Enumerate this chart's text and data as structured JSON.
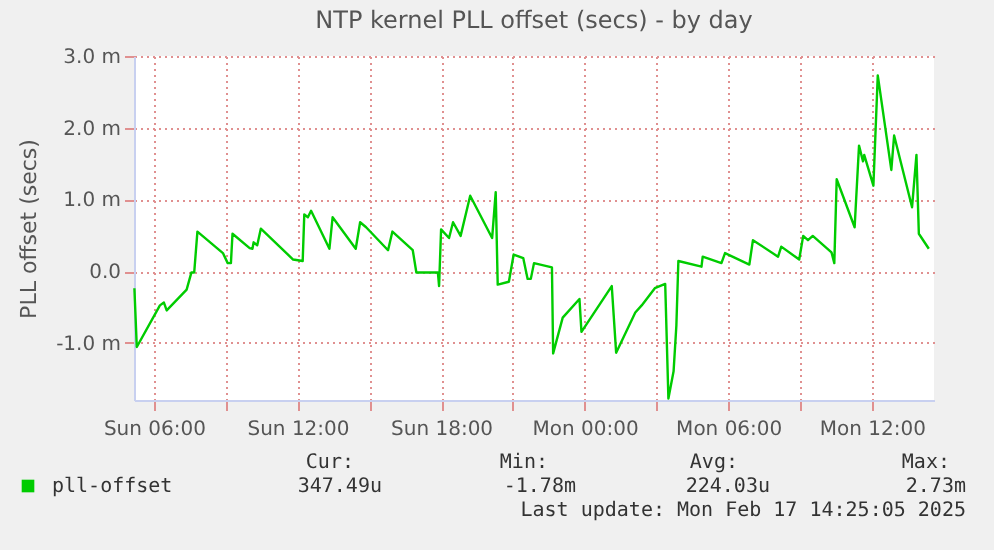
{
  "chart_data": {
    "type": "line",
    "title": "NTP kernel PLL offset (secs) - by day",
    "ylabel": "PLL offset (secs)",
    "x": [
      "2025-02-16T05:11",
      "2025-02-16T05:17",
      "2025-02-16T06:15",
      "2025-02-16T06:25",
      "2025-02-16T06:32",
      "2025-02-16T07:22",
      "2025-02-16T07:34",
      "2025-02-16T07:41",
      "2025-02-16T07:49",
      "2025-02-16T08:53",
      "2025-02-16T09:05",
      "2025-02-16T09:13",
      "2025-02-16T09:17",
      "2025-02-16T10:00",
      "2025-02-16T10:07",
      "2025-02-16T10:10",
      "2025-02-16T10:19",
      "2025-02-16T10:28",
      "2025-02-16T11:49",
      "2025-02-16T12:13",
      "2025-02-16T12:17",
      "2025-02-16T12:26",
      "2025-02-16T12:34",
      "2025-02-16T13:20",
      "2025-02-16T13:28",
      "2025-02-16T14:26",
      "2025-02-16T14:37",
      "2025-02-16T14:52",
      "2025-02-16T15:47",
      "2025-02-16T15:58",
      "2025-02-16T16:49",
      "2025-02-16T16:58",
      "2025-02-16T17:52",
      "2025-02-16T17:55",
      "2025-02-16T18:00",
      "2025-02-16T18:20",
      "2025-02-16T18:30",
      "2025-02-16T18:49",
      "2025-02-16T19:13",
      "2025-02-16T20:08",
      "2025-02-16T20:17",
      "2025-02-16T20:22",
      "2025-02-16T20:50",
      "2025-02-16T21:02",
      "2025-02-16T21:26",
      "2025-02-16T21:37",
      "2025-02-16T21:45",
      "2025-02-16T21:53",
      "2025-02-16T22:38",
      "2025-02-16T22:41",
      "2025-02-16T23:05",
      "2025-02-16T23:47",
      "2025-02-16T23:52",
      "2025-02-17T01:08",
      "2025-02-17T01:19",
      "2025-02-17T02:07",
      "2025-02-17T02:23",
      "2025-02-17T02:56",
      "2025-02-17T03:22",
      "2025-02-17T03:30",
      "2025-02-17T03:43",
      "2025-02-17T03:50",
      "2025-02-17T03:55",
      "2025-02-17T04:53",
      "2025-02-17T04:56",
      "2025-02-17T05:43",
      "2025-02-17T05:52",
      "2025-02-17T06:53",
      "2025-02-17T07:02",
      "2025-02-17T08:05",
      "2025-02-17T08:13",
      "2025-02-17T08:58",
      "2025-02-17T09:08",
      "2025-02-17T09:20",
      "2025-02-17T09:32",
      "2025-02-17T10:19",
      "2025-02-17T10:26",
      "2025-02-17T10:32",
      "2025-02-17T11:17",
      "2025-02-17T11:28",
      "2025-02-17T11:38",
      "2025-02-17T11:41",
      "2025-02-17T12:04",
      "2025-02-17T12:15",
      "2025-02-17T12:49",
      "2025-02-17T12:56",
      "2025-02-17T13:41",
      "2025-02-17T13:52",
      "2025-02-17T13:58",
      "2025-02-17T14:23"
    ],
    "series": [
      {
        "name": "pll-offset",
        "color": "#00cc00",
        "values": [
          -0.24,
          -1.06,
          -0.48,
          -0.44,
          -0.55,
          -0.26,
          -0.02,
          -0.02,
          0.55,
          0.25,
          0.11,
          0.11,
          0.52,
          0.32,
          0.31,
          0.4,
          0.36,
          0.59,
          0.16,
          0.14,
          0.79,
          0.75,
          0.84,
          0.31,
          0.75,
          0.31,
          0.68,
          0.61,
          0.29,
          0.55,
          0.29,
          -0.02,
          -0.02,
          -0.21,
          0.58,
          0.46,
          0.68,
          0.49,
          1.05,
          0.46,
          1.1,
          -0.19,
          -0.15,
          0.23,
          0.18,
          -0.11,
          -0.11,
          0.11,
          0.05,
          -1.15,
          -0.65,
          -0.39,
          -0.85,
          -0.21,
          -1.14,
          -0.58,
          -0.48,
          -0.24,
          -0.18,
          -1.78,
          -1.4,
          -0.76,
          0.14,
          0.06,
          0.2,
          0.11,
          0.25,
          0.09,
          0.43,
          0.2,
          0.34,
          0.16,
          0.49,
          0.43,
          0.49,
          0.26,
          0.11,
          1.28,
          0.61,
          1.75,
          1.53,
          1.62,
          1.19,
          2.73,
          1.41,
          1.89,
          0.89,
          1.62,
          0.52,
          0.31
        ]
      }
    ],
    "xlim": [
      "2025-02-16T05:10",
      "2025-02-17T14:36"
    ],
    "xticks": [
      {
        "value": "2025-02-16T06:00",
        "label": "Sun 06:00"
      },
      {
        "value": "2025-02-16T09:00",
        "label": null
      },
      {
        "value": "2025-02-16T12:00",
        "label": "Sun 12:00"
      },
      {
        "value": "2025-02-16T15:00",
        "label": null
      },
      {
        "value": "2025-02-16T18:00",
        "label": "Sun 18:00"
      },
      {
        "value": "2025-02-16T21:00",
        "label": null
      },
      {
        "value": "2025-02-17T00:00",
        "label": "Mon 00:00"
      },
      {
        "value": "2025-02-17T03:00",
        "label": null
      },
      {
        "value": "2025-02-17T06:00",
        "label": "Mon 06:00"
      },
      {
        "value": "2025-02-17T09:00",
        "label": null
      },
      {
        "value": "2025-02-17T12:00",
        "label": "Mon 12:00"
      }
    ],
    "ylim": [
      -1.8,
      3.0
    ],
    "yticks": [
      {
        "value": -1,
        "label": "-1.0 m"
      },
      {
        "value": 0,
        "label": "0.0"
      },
      {
        "value": 1,
        "label": "1.0 m"
      },
      {
        "value": 2,
        "label": "2.0 m"
      },
      {
        "value": 3,
        "label": "3.0 m"
      }
    ],
    "grid": true,
    "legend": "bottom",
    "annotations": [
      "Cur:",
      "Min:",
      "Avg:",
      "Max:",
      "347.49u",
      "-1.78m",
      "224.03u",
      "2.73m",
      "Last update: Mon Feb 17 14:25:05 2025"
    ]
  }
}
